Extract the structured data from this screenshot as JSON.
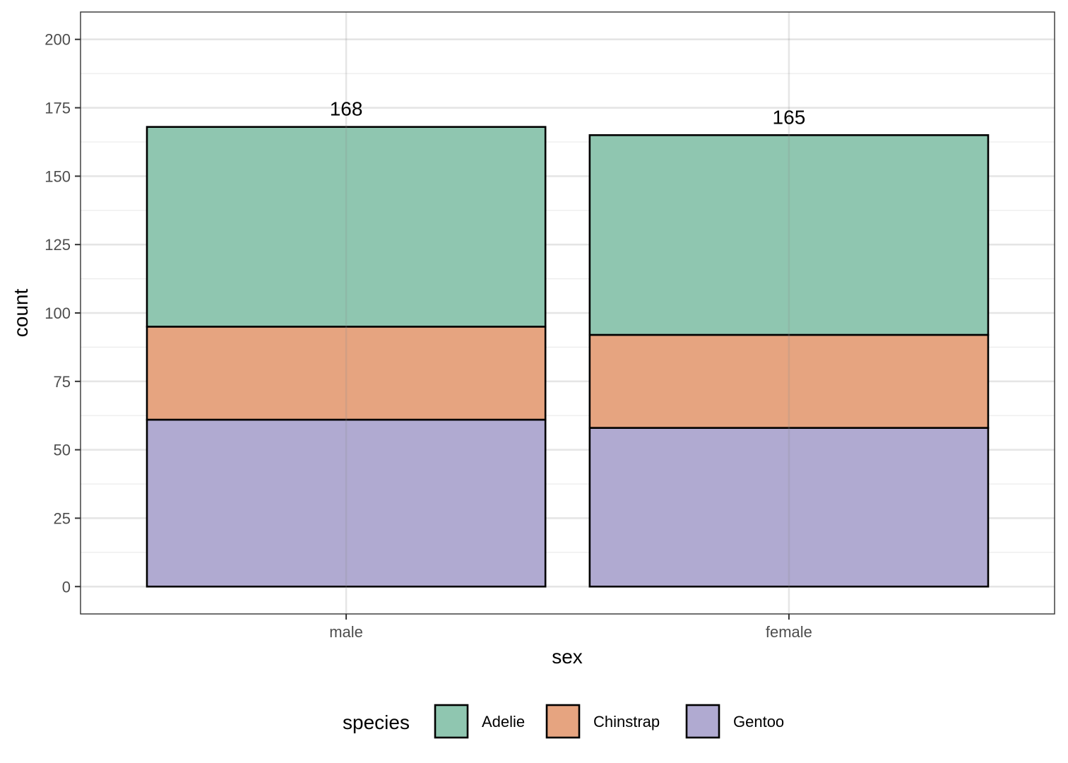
{
  "chart_data": {
    "type": "bar",
    "stacked": true,
    "categories": [
      "male",
      "female"
    ],
    "series": [
      {
        "name": "Gentoo",
        "values": [
          61,
          58
        ],
        "color": "#b0aad1"
      },
      {
        "name": "Chinstrap",
        "values": [
          34,
          34
        ],
        "color": "#e6a480"
      },
      {
        "name": "Adelie",
        "values": [
          73,
          73
        ],
        "color": "#8fc6b0"
      }
    ],
    "totals": [
      168,
      165
    ],
    "total_labels": [
      "168",
      "165"
    ],
    "xlabel": "sex",
    "ylabel": "count",
    "ylim": [
      -10,
      210
    ],
    "yticks": [
      0,
      25,
      50,
      75,
      100,
      125,
      150,
      175,
      200
    ],
    "ytick_labels": [
      "0",
      "25",
      "50",
      "75",
      "100",
      "125",
      "150",
      "175",
      "200"
    ],
    "grid": true,
    "legend": {
      "title": "species",
      "position": "bottom",
      "items": [
        {
          "label": "Adelie",
          "color": "#8fc6b0"
        },
        {
          "label": "Chinstrap",
          "color": "#e6a480"
        },
        {
          "label": "Gentoo",
          "color": "#b0aad1"
        }
      ]
    }
  }
}
